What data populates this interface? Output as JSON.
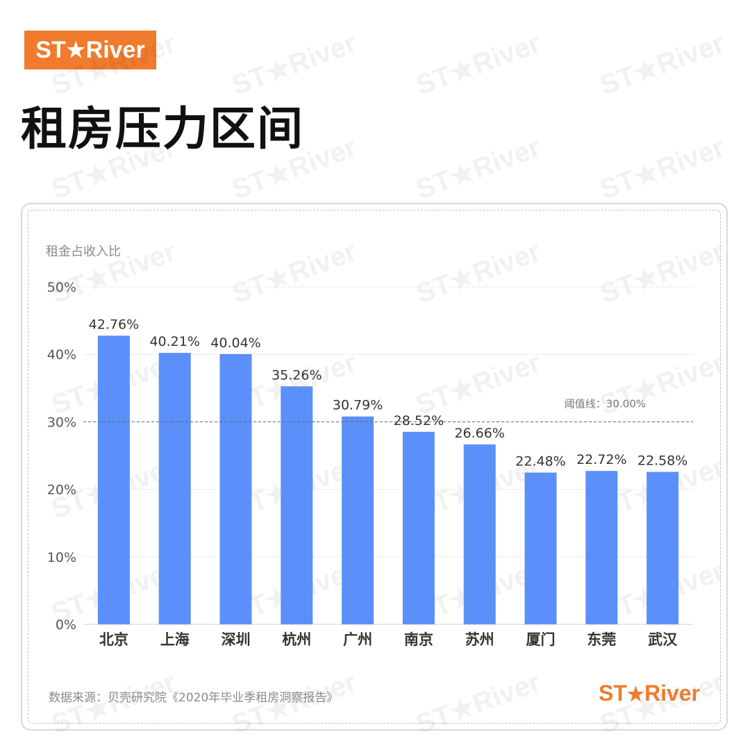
{
  "brand": {
    "logo_text_left": "ST",
    "logo_star": "★",
    "logo_text_right": "River",
    "color": "#f07b2e"
  },
  "page": {
    "title": "租房压力区间"
  },
  "watermark_text": "ST★River",
  "footer": {
    "source": "数据来源：贝壳研究院《2020年毕业季租房洞察报告》"
  },
  "chart_data": {
    "type": "bar",
    "title": "",
    "ylabel": "租金占收入比",
    "xlabel": "",
    "categories": [
      "北京",
      "上海",
      "深圳",
      "杭州",
      "广州",
      "南京",
      "苏州",
      "厦门",
      "东莞",
      "武汉"
    ],
    "values": [
      42.76,
      40.21,
      40.04,
      35.26,
      30.79,
      28.52,
      26.66,
      22.48,
      22.72,
      22.58
    ],
    "value_labels": [
      "42.76%",
      "40.21%",
      "40.04%",
      "35.26%",
      "30.79%",
      "28.52%",
      "26.66%",
      "22.48%",
      "22.72%",
      "22.58%"
    ],
    "ylim": [
      0,
      50
    ],
    "yticks": [
      0,
      10,
      20,
      30,
      40,
      50
    ],
    "ytick_labels": [
      "0%",
      "10%",
      "20%",
      "30%",
      "40%",
      "50%"
    ],
    "threshold": {
      "value": 30,
      "label": "阈值线：30.00%"
    },
    "bar_color": "#5b8ff9",
    "grid": true
  }
}
